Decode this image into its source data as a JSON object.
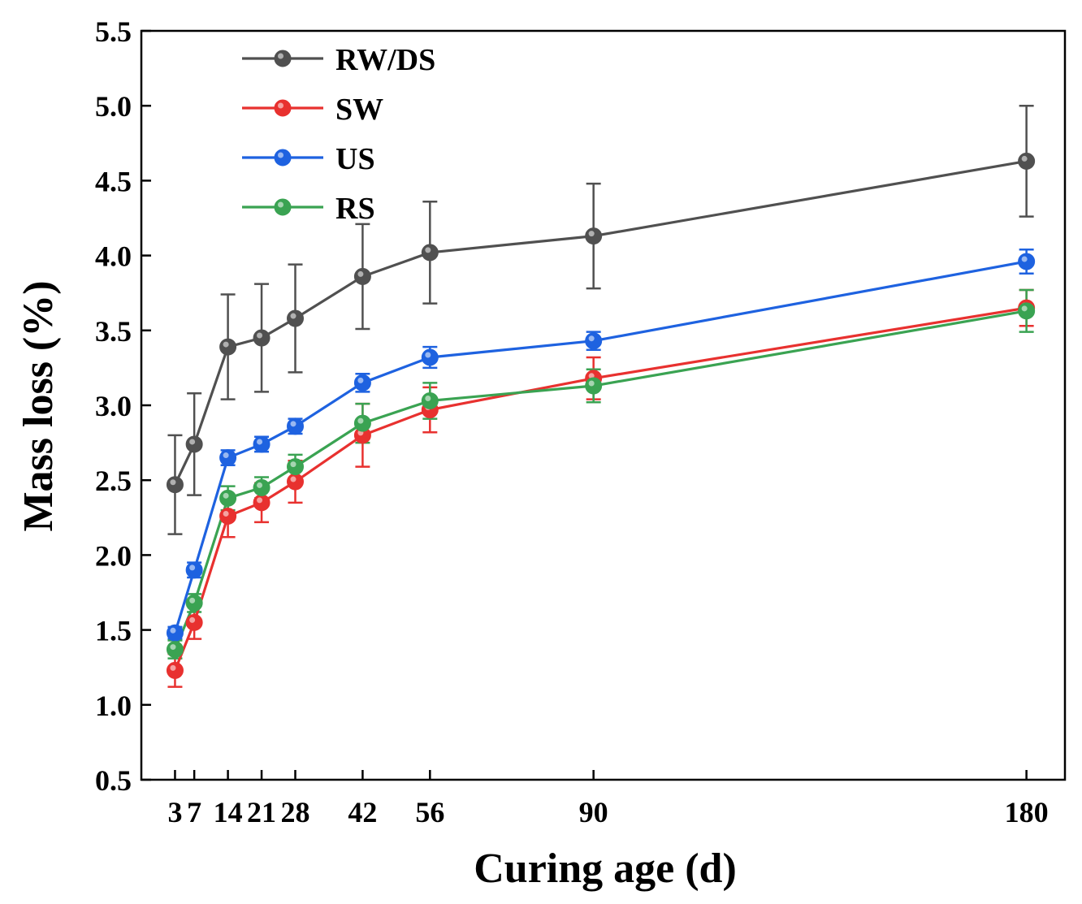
{
  "chart_data": {
    "type": "line",
    "title": "",
    "xlabel": "Curing age (d)",
    "ylabel": "Mass loss (%)",
    "x": [
      3,
      7,
      14,
      21,
      28,
      42,
      56,
      90,
      180
    ],
    "xlim": [
      -4,
      188
    ],
    "ylim": [
      0.5,
      5.5
    ],
    "x_ticks": [
      {
        "value": 3,
        "label": "3"
      },
      {
        "value": 7,
        "label": "7"
      },
      {
        "value": 14,
        "label": "14"
      },
      {
        "value": 21,
        "label": "21"
      },
      {
        "value": 28,
        "label": "28"
      },
      {
        "value": 42,
        "label": "42"
      },
      {
        "value": 56,
        "label": "56"
      },
      {
        "value": 90,
        "label": "90"
      },
      {
        "value": 180,
        "label": "180"
      }
    ],
    "y_ticks": [
      {
        "value": 0.5,
        "label": "0.5"
      },
      {
        "value": 1.0,
        "label": "1.0"
      },
      {
        "value": 1.5,
        "label": "1.5"
      },
      {
        "value": 2.0,
        "label": "2.0"
      },
      {
        "value": 2.5,
        "label": "2.5"
      },
      {
        "value": 3.0,
        "label": "3.0"
      },
      {
        "value": 3.5,
        "label": "3.5"
      },
      {
        "value": 4.0,
        "label": "4.0"
      },
      {
        "value": 4.5,
        "label": "4.5"
      },
      {
        "value": 5.0,
        "label": "5.0"
      },
      {
        "value": 5.5,
        "label": "5.5"
      }
    ],
    "legend_position": "top-left",
    "grid": false,
    "series": [
      {
        "name": "RW/DS",
        "color": "#505050",
        "values": [
          2.47,
          2.74,
          3.39,
          3.45,
          3.58,
          3.86,
          4.02,
          4.13,
          4.63
        ],
        "errors": [
          0.33,
          0.34,
          0.35,
          0.36,
          0.36,
          0.35,
          0.34,
          0.35,
          0.37
        ]
      },
      {
        "name": "SW",
        "color": "#e8312f",
        "values": [
          1.23,
          1.55,
          2.26,
          2.35,
          2.49,
          2.8,
          2.97,
          3.18,
          3.65
        ],
        "errors": [
          0.11,
          0.11,
          0.14,
          0.13,
          0.14,
          0.21,
          0.15,
          0.14,
          0.12
        ]
      },
      {
        "name": "US",
        "color": "#1e62e0",
        "values": [
          1.48,
          1.9,
          2.65,
          2.74,
          2.86,
          3.15,
          3.32,
          3.43,
          3.96
        ],
        "errors": [
          0.04,
          0.05,
          0.05,
          0.05,
          0.05,
          0.06,
          0.07,
          0.06,
          0.08
        ]
      },
      {
        "name": "RS",
        "color": "#3aa352",
        "values": [
          1.37,
          1.68,
          2.38,
          2.45,
          2.59,
          2.88,
          3.03,
          3.13,
          3.63
        ],
        "errors": [
          0.06,
          0.06,
          0.08,
          0.07,
          0.08,
          0.13,
          0.12,
          0.11,
          0.14
        ]
      }
    ]
  }
}
